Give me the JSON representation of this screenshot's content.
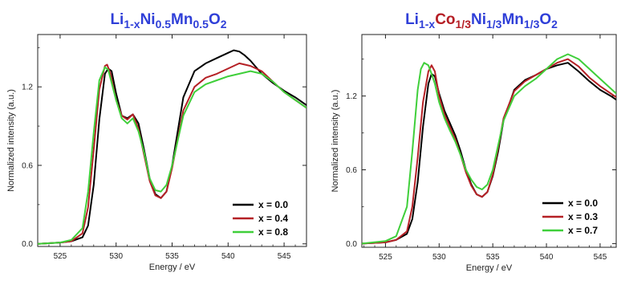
{
  "chart_data": [
    {
      "type": "line",
      "title_parts": [
        {
          "text": "Li",
          "color": "#2f3fd8",
          "sub": false
        },
        {
          "text": "1-x",
          "color": "#2f3fd8",
          "sub": true
        },
        {
          "text": "Ni",
          "color": "#2f3fd8",
          "sub": false
        },
        {
          "text": "0.5",
          "color": "#2f3fd8",
          "sub": true
        },
        {
          "text": "Mn",
          "color": "#2f3fd8",
          "sub": false
        },
        {
          "text": "0.5",
          "color": "#2f3fd8",
          "sub": true
        },
        {
          "text": "O",
          "color": "#2f3fd8",
          "sub": false
        },
        {
          "text": "2",
          "color": "#2f3fd8",
          "sub": true
        }
      ],
      "xlabel": "Energy / eV",
      "ylabel": "Normalized intensity (a.u.)",
      "xlim": [
        523,
        547
      ],
      "ylim": [
        -0.02,
        1.6
      ],
      "xticks": [
        525,
        530,
        535,
        540,
        545
      ],
      "yticks": [
        0.0,
        0.6,
        1.2
      ],
      "ytick_labels": [
        "0.0",
        "0.6",
        "1.2"
      ],
      "legend_position": "bottom-right",
      "series": [
        {
          "name": "x = 0.0",
          "color": "#000000",
          "x": [
            523,
            525,
            526,
            527,
            527.5,
            528,
            528.5,
            529,
            529.3,
            529.6,
            530,
            530.5,
            531,
            531.5,
            532,
            532.5,
            533,
            533.5,
            534,
            534.5,
            535,
            536,
            537,
            538,
            539,
            540,
            540.5,
            541,
            541.5,
            542,
            543,
            544,
            545,
            546,
            547
          ],
          "y": [
            0.0,
            0.01,
            0.02,
            0.05,
            0.14,
            0.45,
            0.95,
            1.3,
            1.34,
            1.32,
            1.15,
            0.98,
            0.96,
            0.99,
            0.92,
            0.72,
            0.5,
            0.38,
            0.35,
            0.4,
            0.6,
            1.12,
            1.32,
            1.38,
            1.42,
            1.46,
            1.48,
            1.47,
            1.44,
            1.4,
            1.3,
            1.23,
            1.17,
            1.12,
            1.06
          ]
        },
        {
          "name": "x = 0.4",
          "color": "#b52025",
          "x": [
            523,
            525,
            526,
            527,
            527.5,
            528,
            528.5,
            529,
            529.2,
            529.5,
            530,
            530.5,
            531,
            531.5,
            532,
            532.5,
            533,
            533.5,
            534,
            534.5,
            535,
            536,
            537,
            538,
            539,
            540,
            541,
            542,
            543,
            544,
            545,
            546,
            547
          ],
          "y": [
            0.0,
            0.01,
            0.02,
            0.08,
            0.28,
            0.72,
            1.18,
            1.36,
            1.37,
            1.3,
            1.1,
            0.98,
            0.95,
            0.99,
            0.88,
            0.68,
            0.48,
            0.37,
            0.35,
            0.4,
            0.58,
            1.02,
            1.2,
            1.27,
            1.3,
            1.34,
            1.38,
            1.36,
            1.32,
            1.24,
            1.16,
            1.1,
            1.04
          ]
        },
        {
          "name": "x = 0.8",
          "color": "#3fcf3a",
          "x": [
            523,
            525,
            526,
            527,
            527.5,
            528,
            528.5,
            529,
            529.3,
            530,
            530.5,
            531,
            531.5,
            532,
            532.5,
            533,
            533.5,
            534,
            534.5,
            535,
            536,
            537,
            538,
            539,
            540,
            541,
            542,
            543,
            544,
            545,
            546,
            547
          ],
          "y": [
            0.0,
            0.01,
            0.03,
            0.12,
            0.4,
            0.85,
            1.25,
            1.35,
            1.33,
            1.1,
            0.96,
            0.92,
            0.96,
            0.86,
            0.7,
            0.5,
            0.41,
            0.4,
            0.45,
            0.6,
            0.98,
            1.16,
            1.22,
            1.25,
            1.28,
            1.3,
            1.32,
            1.3,
            1.24,
            1.16,
            1.1,
            1.04
          ]
        }
      ]
    },
    {
      "type": "line",
      "title_parts": [
        {
          "text": "Li",
          "color": "#2f3fd8",
          "sub": false
        },
        {
          "text": "1-x",
          "color": "#2f3fd8",
          "sub": true
        },
        {
          "text": "Co",
          "color": "#b51e25",
          "sub": false
        },
        {
          "text": "1/3",
          "color": "#b51e25",
          "sub": true
        },
        {
          "text": "Ni",
          "color": "#2f3fd8",
          "sub": false
        },
        {
          "text": "1/3",
          "color": "#2f3fd8",
          "sub": true
        },
        {
          "text": "Mn",
          "color": "#2f3fd8",
          "sub": false
        },
        {
          "text": "1/3",
          "color": "#2f3fd8",
          "sub": true
        },
        {
          "text": "O",
          "color": "#2f3fd8",
          "sub": false
        },
        {
          "text": "2",
          "color": "#2f3fd8",
          "sub": true
        }
      ],
      "xlabel": "Energy / eV",
      "ylabel": "Normalized intensity (a.u.)",
      "xlim": [
        522.8,
        546.5
      ],
      "ylim": [
        -0.03,
        1.7
      ],
      "xticks": [
        525,
        530,
        535,
        540,
        545
      ],
      "yticks": [
        0.0,
        0.6,
        1.2
      ],
      "ytick_labels": [
        "0.0",
        "0.6",
        "1.2"
      ],
      "legend_position": "bottom-right",
      "series": [
        {
          "name": "x = 0.0",
          "color": "#000000",
          "x": [
            522.8,
            525,
            526,
            527,
            527.5,
            528,
            528.5,
            529,
            529.3,
            529.6,
            530,
            530.5,
            531,
            531.5,
            532,
            532.5,
            533,
            533.5,
            534,
            534.5,
            535,
            535.5,
            536,
            537,
            538,
            539,
            540,
            541,
            542,
            543,
            544,
            545,
            546,
            546.5
          ],
          "y": [
            0.0,
            0.01,
            0.03,
            0.08,
            0.2,
            0.5,
            0.95,
            1.3,
            1.38,
            1.36,
            1.22,
            1.08,
            0.98,
            0.88,
            0.75,
            0.6,
            0.48,
            0.4,
            0.38,
            0.42,
            0.55,
            0.75,
            1.0,
            1.25,
            1.33,
            1.37,
            1.42,
            1.45,
            1.47,
            1.4,
            1.32,
            1.25,
            1.2,
            1.17
          ]
        },
        {
          "name": "x = 0.3",
          "color": "#b52025",
          "x": [
            522.8,
            525,
            526,
            527,
            527.5,
            528,
            528.5,
            529,
            529.3,
            529.6,
            530,
            530.5,
            531,
            531.5,
            532,
            532.5,
            533,
            533.5,
            534,
            534.5,
            535,
            535.5,
            536,
            537,
            538,
            539,
            540,
            541,
            542,
            543,
            544,
            545,
            546,
            546.5
          ],
          "y": [
            0.0,
            0.01,
            0.03,
            0.1,
            0.3,
            0.7,
            1.15,
            1.4,
            1.45,
            1.4,
            1.2,
            1.05,
            0.95,
            0.85,
            0.72,
            0.58,
            0.47,
            0.4,
            0.38,
            0.42,
            0.56,
            0.78,
            1.02,
            1.24,
            1.32,
            1.37,
            1.42,
            1.47,
            1.5,
            1.44,
            1.35,
            1.28,
            1.22,
            1.19
          ]
        },
        {
          "name": "x = 0.7",
          "color": "#3fcf3a",
          "x": [
            522.8,
            525,
            526,
            527,
            527.5,
            528,
            528.3,
            528.6,
            529,
            529.3,
            529.6,
            530,
            530.5,
            531,
            531.5,
            532,
            532.5,
            533,
            533.5,
            534,
            534.5,
            535,
            535.5,
            536,
            537,
            538,
            539,
            540,
            541,
            542,
            543,
            544,
            545,
            546,
            546.5
          ],
          "y": [
            0.0,
            0.02,
            0.06,
            0.3,
            0.75,
            1.25,
            1.42,
            1.47,
            1.45,
            1.38,
            1.3,
            1.15,
            1.02,
            0.92,
            0.83,
            0.72,
            0.6,
            0.52,
            0.46,
            0.44,
            0.48,
            0.6,
            0.8,
            1.0,
            1.2,
            1.28,
            1.34,
            1.42,
            1.5,
            1.54,
            1.5,
            1.42,
            1.34,
            1.26,
            1.22
          ]
        }
      ]
    }
  ]
}
